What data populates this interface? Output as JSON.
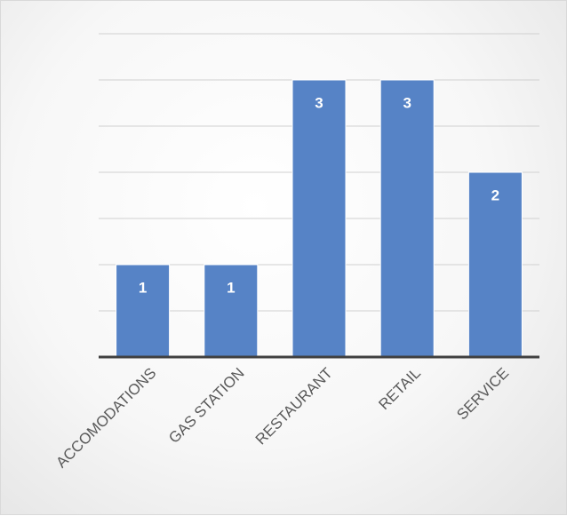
{
  "chart_data": {
    "type": "bar",
    "categories": [
      "ACCOMODATIONS",
      "GAS STATION",
      "RESTAURANT",
      "RETAIL",
      "SERVICE"
    ],
    "values": [
      1,
      1,
      3,
      3,
      2
    ],
    "data_labels": [
      "1",
      "1",
      "3",
      "3",
      "2"
    ],
    "ylim": [
      0,
      3.5
    ],
    "y_gridline_step": 0.5,
    "grid": true,
    "legend": "none",
    "colors": {
      "bar": "#5683c6",
      "data_label": "#ffffff",
      "axis": "#404040",
      "grid": "#d0d0d0",
      "tick_label": "#595959"
    }
  }
}
